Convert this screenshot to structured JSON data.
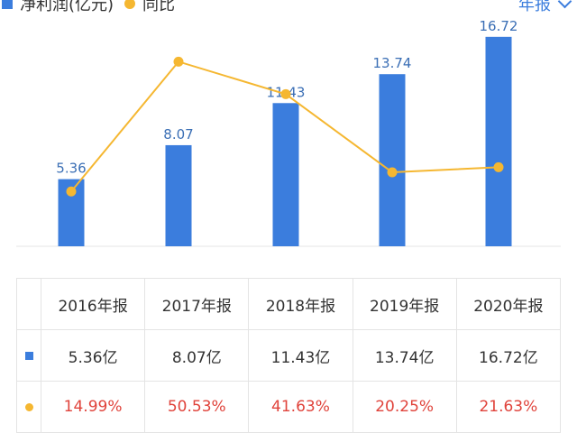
{
  "legend": {
    "bar_label": "净利润(亿元)",
    "line_label": "同比",
    "bar_color": "#3b7ddd",
    "line_color": "#f5b731"
  },
  "period_select": {
    "label": "年报",
    "icon": "chevron-down-icon"
  },
  "chart_data": {
    "type": "bar",
    "categories": [
      "2016年报",
      "2017年报",
      "2018年报",
      "2019年报",
      "2020年报"
    ],
    "series": [
      {
        "name": "净利润(亿元)",
        "type": "bar",
        "values": [
          5.36,
          8.07,
          11.43,
          13.74,
          16.72
        ]
      },
      {
        "name": "同比",
        "type": "line",
        "values": [
          14.99,
          50.53,
          41.63,
          20.25,
          21.63
        ]
      }
    ],
    "data_labels": [
      "5.36",
      "8.07",
      "11.43",
      "13.74",
      "16.72"
    ],
    "bar_ylim": [
      0,
      17.5
    ],
    "line_ylim": [
      0,
      60
    ],
    "grid": false,
    "legend_position": "top-left"
  },
  "table": {
    "headers": [
      "2016年报",
      "2017年报",
      "2018年报",
      "2019年报",
      "2020年报"
    ],
    "profit_row": [
      "5.36亿",
      "8.07亿",
      "11.43亿",
      "13.74亿",
      "16.72亿"
    ],
    "yoy_row": [
      "14.99%",
      "50.53%",
      "41.63%",
      "20.25%",
      "21.63%"
    ]
  }
}
